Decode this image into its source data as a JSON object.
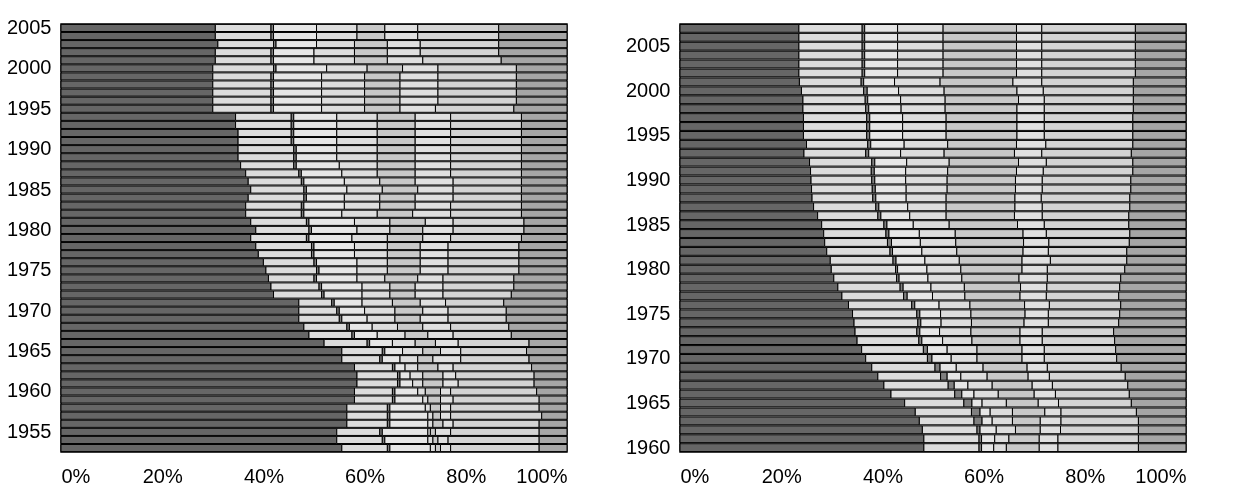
{
  "chart_data": [
    {
      "type": "bar",
      "orientation": "horizontal",
      "stacked": true,
      "categories": [
        "2005",
        null,
        null,
        null,
        null,
        "2000",
        null,
        null,
        null,
        null,
        "1995",
        null,
        null,
        null,
        null,
        "1990",
        null,
        null,
        null,
        null,
        "1985",
        null,
        null,
        null,
        null,
        "1980",
        null,
        null,
        null,
        null,
        "1975",
        null,
        null,
        null,
        null,
        "1970",
        null,
        null,
        null,
        null,
        "1965",
        null,
        null,
        null,
        null,
        "1960",
        null,
        null,
        null,
        null,
        "1955",
        null,
        null
      ],
      "xlim": [
        0,
        100
      ],
      "xticks": [
        {
          "value": 0,
          "label": "0%"
        },
        {
          "value": 20,
          "label": "20%"
        },
        {
          "value": 40,
          "label": "40%"
        },
        {
          "value": 60,
          "label": "60%"
        },
        {
          "value": 80,
          "label": "80%"
        },
        {
          "value": 100,
          "label": "100%"
        }
      ],
      "series": [
        {
          "color": "#666666",
          "values": [
            30.5,
            30.5,
            31,
            30.5,
            30.5,
            30,
            30,
            30,
            30,
            30,
            30,
            34.5,
            34.5,
            35,
            35,
            35,
            35,
            35.5,
            36.5,
            37,
            37.5,
            37,
            36.5,
            36.5,
            37.5,
            38.5,
            37.5,
            38.5,
            39,
            40,
            40.5,
            41,
            41.5,
            42,
            47,
            47,
            47,
            48,
            49,
            52,
            55.5,
            55.5,
            58,
            58.5,
            58.5,
            58,
            58,
            56.5,
            56.5,
            56.5,
            54.5,
            54.5,
            55.5
          ]
        },
        {
          "color": "#dcdcdc",
          "values": [
            11,
            11,
            11,
            11,
            11,
            12,
            11.5,
            11.5,
            11.5,
            11.5,
            11.5,
            11,
            11,
            10.5,
            10.5,
            11,
            11,
            10.5,
            10.5,
            10.5,
            10.5,
            11,
            11,
            11,
            11,
            10.5,
            11,
            11,
            10.5,
            10,
            10,
            9,
            9.5,
            9.5,
            6.5,
            7.5,
            8,
            8.5,
            8.5,
            8.5,
            8,
            7.5,
            7.5,
            8,
            8,
            7.5,
            7.5,
            8,
            8,
            8,
            8.5,
            9,
            9
          ]
        },
        {
          "color": "#7f7f7f",
          "values": [
            0.5,
            0.5,
            0.5,
            0.5,
            0.5,
            0.5,
            0.5,
            0.5,
            0.5,
            0.5,
            0.5,
            0.5,
            0.5,
            0.5,
            0.5,
            0.5,
            0.5,
            0.5,
            0.5,
            0.5,
            0.5,
            0.5,
            0.5,
            0.5,
            0.5,
            0.5,
            0.5,
            0.5,
            0.5,
            0.5,
            0.5,
            0.5,
            0.5,
            0.5,
            0.5,
            0.5,
            0.5,
            0.5,
            0.5,
            0.5,
            0.5,
            0.5,
            0.5,
            0.5,
            0.5,
            0.5,
            0.5,
            0.5,
            0.5,
            0.5,
            0.5,
            0.5,
            0.5
          ]
        },
        {
          "color": "#e6e6e6",
          "values": [
            8.5,
            8.5,
            8,
            8,
            8,
            10,
            9.5,
            9.5,
            9.5,
            9.5,
            9.5,
            8.5,
            8.5,
            8.5,
            8.5,
            8,
            8,
            8.5,
            8,
            8,
            8,
            7.5,
            8,
            7.5,
            9,
            9,
            8.5,
            8,
            8,
            8,
            7.5,
            8,
            8,
            7.5,
            5.5,
            5,
            5,
            4.5,
            4.5,
            4.5,
            3.5,
            3.5,
            2,
            2,
            2.5,
            4.5,
            5.5,
            7,
            7.5,
            7.5,
            9,
            8.5,
            8
          ]
        },
        {
          "color": "#dddddd",
          "values": [
            8,
            8,
            7.5,
            8,
            8,
            8,
            8.5,
            8.5,
            8.5,
            8.5,
            8.5,
            8,
            8,
            8,
            8,
            8,
            8,
            7.5,
            7,
            7,
            7,
            7,
            7,
            7,
            7,
            6.5,
            7,
            6.5,
            6.5,
            6,
            6,
            5.5,
            5.5,
            5.5,
            6,
            6,
            5.5,
            5,
            5.5,
            4.5,
            4,
            3.5,
            2.5,
            2.5,
            2,
            1.5,
            1,
            1,
            1,
            1,
            0.5,
            1,
            1
          ]
        },
        {
          "color": "#c8c8c8",
          "values": [
            5.5,
            5.5,
            6.5,
            6.5,
            6.5,
            7,
            7,
            7,
            7,
            7,
            7,
            7.5,
            7.5,
            7.5,
            7.5,
            7.5,
            7.5,
            7.5,
            7.5,
            7,
            7,
            7,
            7,
            7,
            7,
            6.5,
            7,
            6.5,
            6.5,
            6.5,
            6.5,
            6.5,
            5,
            5,
            5.5,
            5.5,
            5,
            5,
            4.5,
            4,
            3.5,
            3,
            4,
            4,
            4,
            3,
            2.5,
            2,
            1.5,
            2,
            1,
            1,
            1
          ]
        },
        {
          "color": "#e0e0e0",
          "values": [
            6.5,
            6.5,
            6.5,
            6.5,
            7,
            7,
            7.5,
            7.5,
            7.5,
            7.5,
            7,
            7,
            7,
            7,
            7,
            7,
            7,
            7,
            7,
            7.5,
            7,
            7.5,
            7,
            7.5,
            5.5,
            6,
            5.5,
            5.5,
            5.5,
            5.5,
            5.5,
            5,
            5.5,
            5.5,
            5,
            5,
            5.5,
            5.5,
            5,
            4.5,
            4,
            5.5,
            3,
            2.5,
            3,
            2,
            2.5,
            2,
            2,
            2,
            3,
            2,
            2
          ]
        },
        {
          "color": "#d4d4d4",
          "values": [
            16,
            16,
            15.5,
            15.5,
            15.5,
            15.5,
            15.5,
            15.5,
            15.5,
            15.5,
            15.5,
            14,
            14,
            14,
            14,
            14,
            14,
            14,
            14,
            13.5,
            13.5,
            13.5,
            14,
            14,
            14,
            14,
            14,
            14,
            14,
            14,
            14,
            14,
            14,
            13.5,
            11.5,
            11.5,
            11.5,
            11.5,
            11.5,
            14,
            13,
            13.5,
            15.5,
            15.5,
            15,
            17,
            17,
            17.5,
            18,
            17,
            17.5,
            18,
            17.5
          ]
        },
        {
          "color": "#a6a6a6",
          "values": [
            13.5,
            13.5,
            13.5,
            13.5,
            13,
            10,
            10,
            10,
            10,
            10,
            10.5,
            9,
            9,
            9,
            9,
            9,
            9,
            9,
            9,
            9,
            9,
            9,
            9,
            9,
            8.5,
            8.5,
            9,
            9.5,
            9.5,
            9.5,
            9.5,
            10.5,
            10.5,
            11,
            12.5,
            12,
            12,
            11.5,
            11,
            7.5,
            8,
            7.5,
            7,
            6.5,
            6.5,
            6,
            5.5,
            5.5,
            5,
            5.5,
            5.5,
            5.5,
            5.5
          ]
        }
      ]
    },
    {
      "type": "bar",
      "orientation": "horizontal",
      "stacked": true,
      "categories": [
        null,
        null,
        "2005",
        null,
        null,
        null,
        null,
        "2000",
        null,
        null,
        null,
        null,
        "1995",
        null,
        null,
        null,
        null,
        "1990",
        null,
        null,
        null,
        null,
        "1985",
        null,
        null,
        null,
        null,
        "1980",
        null,
        null,
        null,
        null,
        "1975",
        null,
        null,
        null,
        null,
        "1970",
        null,
        null,
        null,
        null,
        "1965",
        null,
        null,
        null,
        null,
        "1960"
      ],
      "xlim": [
        0,
        100
      ],
      "xticks": [
        {
          "value": 0,
          "label": "0%"
        },
        {
          "value": 20,
          "label": "20%"
        },
        {
          "value": 40,
          "label": "40%"
        },
        {
          "value": 60,
          "label": "60%"
        },
        {
          "value": 80,
          "label": "80%"
        },
        {
          "value": 100,
          "label": "100%"
        }
      ],
      "series": [
        {
          "color": "#666666",
          "values": [
            23.5,
            23.5,
            23.5,
            23.5,
            23.5,
            23.5,
            23.6,
            24,
            24.3,
            24.3,
            24.4,
            24.4,
            24.4,
            25,
            24.5,
            25.6,
            25.8,
            25.9,
            26,
            26.1,
            26.4,
            27.2,
            28,
            28.4,
            28.6,
            29,
            29.7,
            29.9,
            30.4,
            31.2,
            32,
            33.3,
            34.1,
            34.4,
            34.6,
            35,
            35.9,
            36.7,
            37.9,
            39.1,
            40.3,
            41.7,
            44.4,
            46.5,
            47.3,
            47.9,
            48.2,
            48.2
          ]
        },
        {
          "color": "#dcdcdc",
          "values": [
            12.5,
            12.5,
            12.5,
            12.5,
            12.5,
            12.5,
            12.2,
            12.3,
            12.3,
            12.4,
            12.5,
            12.5,
            12.5,
            12.1,
            12.2,
            12.3,
            12,
            12,
            12,
            12,
            12.3,
            11.9,
            12.3,
            12.3,
            12.4,
            12.5,
            12.4,
            12.7,
            12.4,
            12.3,
            12.2,
            12.5,
            12.7,
            12.6,
            12.2,
            12.2,
            12.2,
            12.2,
            12.5,
            12.4,
            12.7,
            12.6,
            11.7,
            11.1,
            10.8,
            10.8,
            10.9,
            10.9
          ]
        },
        {
          "color": "#7f7f7f",
          "values": [
            0.5,
            0.5,
            0.5,
            0.5,
            0.5,
            0.5,
            0.5,
            0.7,
            0.5,
            0.6,
            0.6,
            0.6,
            0.6,
            0.6,
            0.6,
            0.6,
            0.6,
            0.6,
            0.6,
            0.6,
            0.6,
            0.6,
            0.6,
            0.6,
            0.8,
            0.5,
            0.6,
            0.4,
            0.5,
            0.6,
            0.7,
            0.6,
            0.6,
            0.6,
            0.6,
            0.6,
            0.8,
            0.9,
            1,
            1.3,
            1.2,
            1.4,
            1.6,
            1.7,
            1.6,
            0.6,
            0.5,
            0.5
          ]
        },
        {
          "color": "#e6e6e6",
          "values": [
            6.5,
            6.5,
            6.5,
            6.5,
            6.5,
            6.5,
            6.1,
            6.2,
            6.5,
            6.4,
            6.5,
            6.5,
            6.5,
            6.6,
            6.3,
            6.3,
            6.2,
            6.1,
            6.1,
            6,
            5.7,
            5.7,
            5.2,
            6,
            5.7,
            5.8,
            5.7,
            5.8,
            5.7,
            5.5,
            5,
            4.8,
            4.1,
            4,
            3.9,
            4.1,
            3.9,
            3.8,
            3.2,
            2.7,
            2.7,
            2.4,
            2,
            2,
            2,
            3.2,
            2.6,
            2.4
          ]
        },
        {
          "color": "#dddddd",
          "values": [
            9,
            9,
            9,
            9,
            9,
            9,
            9,
            9,
            8.8,
            8.7,
            8.6,
            8.6,
            8.6,
            8.6,
            8.6,
            8.4,
            8.3,
            8.2,
            8.1,
            7.9,
            7.6,
            7.2,
            7.1,
            7.1,
            7,
            6.9,
            6.8,
            6.7,
            6.7,
            6.6,
            6.4,
            6.1,
            6,
            6,
            6.2,
            5.8,
            5.9,
            5.1,
            5.3,
            5.2,
            4.8,
            4.8,
            4.8,
            4.4,
            4,
            3.8,
            2.8,
            2.5
          ]
        },
        {
          "color": "#c8c8c8",
          "values": [
            14.5,
            14.5,
            14.5,
            14.5,
            14.5,
            14.5,
            14.4,
            14.4,
            14.5,
            14.2,
            14,
            14,
            14,
            13.6,
            13.9,
            13.7,
            13.6,
            13.5,
            13.5,
            13.6,
            13.6,
            13.5,
            13.5,
            13.4,
            13.4,
            13.1,
            12.4,
            12.1,
            11.3,
            11.1,
            10.9,
            10.8,
            10.7,
            10.4,
            9.7,
            9.5,
            8.9,
            8.9,
            8.7,
            8.1,
            7.9,
            7.1,
            6.3,
            6.4,
            5.5,
            4.9,
            6,
            6.5
          ]
        },
        {
          "color": "#e0e0e0",
          "values": [
            5,
            5,
            5,
            5,
            5,
            5,
            5.7,
            5.2,
            5.1,
            5.4,
            5.4,
            5.4,
            5.4,
            5.8,
            5.4,
            5.5,
            5.3,
            5.3,
            5.3,
            5.2,
            5.4,
            5.5,
            5.3,
            4.6,
            5,
            5,
            5.6,
            5,
            5.6,
            5.2,
            5.2,
            4.9,
            4.6,
            4.8,
            4.4,
            4.4,
            4.4,
            4.4,
            4,
            4.2,
            4,
            4.2,
            4,
            3.2,
            4.1,
            4,
            3.7,
            3.7
          ]
        },
        {
          "color": "#d4d4d4",
          "values": [
            18.5,
            18.5,
            18.5,
            18.5,
            18.5,
            18.5,
            18.1,
            17.8,
            17.6,
            17.6,
            17.5,
            17.5,
            17.5,
            17.2,
            17.7,
            17.1,
            17.7,
            17.5,
            17.5,
            17.5,
            17.3,
            17.1,
            16.7,
            16.5,
            15.9,
            15.5,
            15.1,
            15.3,
            14.5,
            14.4,
            14.3,
            14.1,
            14.1,
            13.9,
            14.1,
            14.3,
            14.1,
            14.3,
            14.6,
            15,
            14.9,
            14.6,
            14.4,
            14.9,
            15.3,
            15.4,
            15.9,
            15.9
          ]
        },
        {
          "color": "#a6a6a6",
          "values": [
            10,
            10,
            10,
            10,
            10,
            10,
            10.4,
            10.4,
            10.4,
            10.4,
            10.5,
            10.5,
            10.5,
            10.5,
            10.8,
            10.5,
            10.5,
            10.9,
            10.9,
            11.1,
            11.1,
            11.3,
            11.3,
            11.1,
            11.2,
            11.7,
            11.7,
            12.1,
            12.9,
            13.1,
            13.3,
            12.9,
            13.1,
            13.3,
            14.3,
            14.1,
            13.9,
            13.7,
            12.8,
            12,
            11.5,
            11.2,
            10.8,
            9.8,
            9.4,
            9.4,
            9.4,
            9.4
          ]
        }
      ]
    }
  ]
}
